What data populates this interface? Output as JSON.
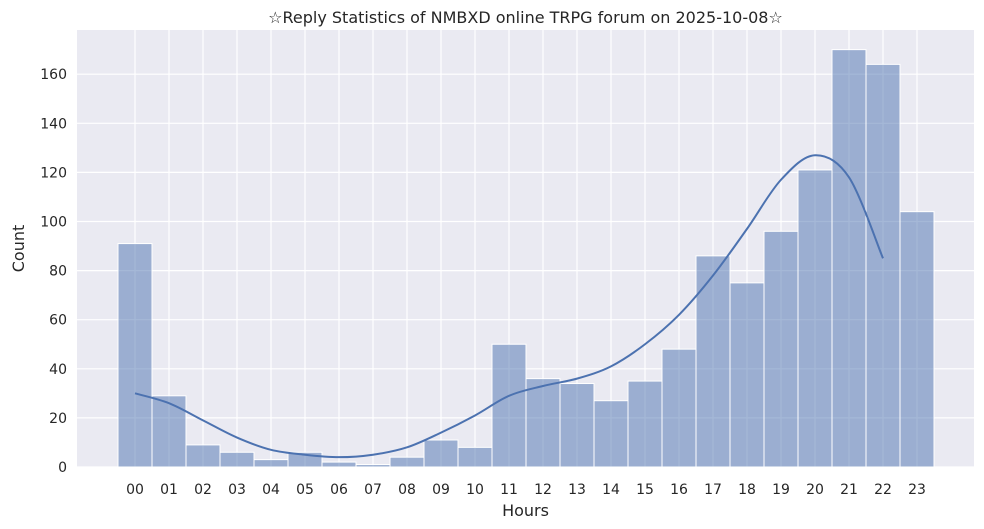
{
  "chart_data": {
    "type": "bar",
    "title": "☆Reply Statistics of NMBXD online TRPG forum on 2025-10-08☆",
    "xlabel": "Hours",
    "ylabel": "Count",
    "categories": [
      "00",
      "01",
      "02",
      "03",
      "04",
      "05",
      "06",
      "07",
      "08",
      "09",
      "10",
      "11",
      "12",
      "13",
      "14",
      "15",
      "16",
      "17",
      "18",
      "19",
      "20",
      "21",
      "22",
      "23"
    ],
    "values": [
      91,
      29,
      9,
      6,
      3,
      6,
      2,
      1,
      4,
      11,
      8,
      50,
      36,
      34,
      27,
      35,
      48,
      86,
      75,
      96,
      121,
      170,
      164,
      104
    ],
    "kde": [
      30,
      26,
      19,
      12,
      7,
      5,
      4,
      5,
      8,
      14,
      21,
      29,
      33,
      36,
      41,
      50,
      62,
      78,
      97,
      117,
      127,
      118,
      85
    ],
    "yticks": [
      0,
      20,
      40,
      60,
      80,
      100,
      120,
      140,
      160
    ],
    "ylim": [
      0,
      178
    ],
    "grid": true,
    "colors": {
      "background": "#eaeaf2",
      "bar_fill": "#4c72b0",
      "bar_edge": "#ffffff",
      "kde_line": "#4c72b0",
      "grid": "#ffffff"
    }
  }
}
